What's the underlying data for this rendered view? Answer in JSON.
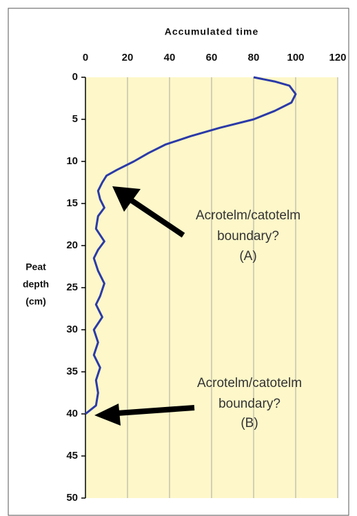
{
  "chart_data": {
    "type": "line",
    "title": "Accumulated time",
    "ylabel": [
      "Peat",
      "depth",
      "(cm)"
    ],
    "series": [
      {
        "color": "#2b3aa8",
        "x": [
          80,
          90,
          97,
          100,
          98,
          90,
          80,
          64,
          50,
          38,
          30,
          23,
          15,
          10,
          8,
          6,
          7,
          9,
          6,
          5,
          9,
          6,
          4,
          6,
          9,
          7,
          5,
          8,
          4,
          6,
          4,
          7,
          5,
          6,
          5,
          0
        ],
        "y": [
          0,
          0.5,
          1,
          2,
          3,
          4,
          5,
          6,
          7,
          8,
          9,
          10,
          11,
          11.7,
          12.5,
          13.5,
          14.5,
          15.5,
          16.5,
          18,
          19.5,
          20.5,
          21.5,
          23,
          24.5,
          26,
          27,
          28.5,
          30,
          31.5,
          33,
          34.5,
          36,
          37.5,
          39,
          40
        ]
      }
    ],
    "xlim": [
      0,
      120
    ],
    "xticks": [
      0,
      20,
      40,
      60,
      80,
      100,
      120
    ],
    "ylim": [
      0,
      50
    ],
    "yticks": [
      0,
      5,
      10,
      15,
      20,
      25,
      30,
      35,
      40,
      45,
      50
    ],
    "y_inverted": true,
    "x_axis_position": "top",
    "grid": "x",
    "background": "#fdf7c9",
    "annotations": [
      {
        "lines": [
          "Acrotelm/catotelm",
          "boundary?",
          "(A)"
        ]
      },
      {
        "lines": [
          "Acrotelm/catotelm",
          "boundary?",
          "(B)"
        ]
      }
    ]
  }
}
